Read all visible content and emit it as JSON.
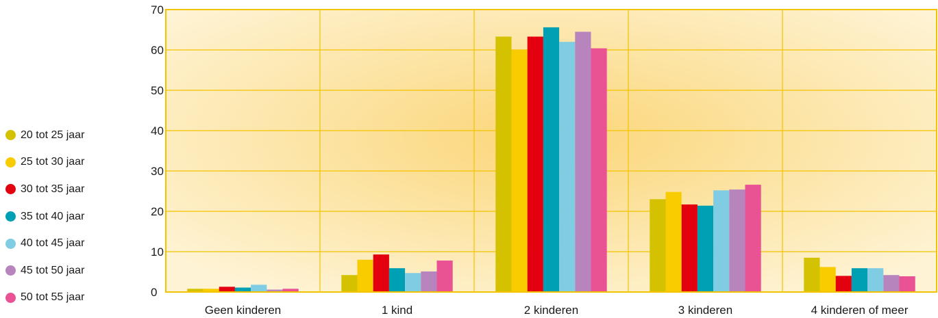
{
  "chart_data": {
    "type": "bar",
    "categories": [
      "Geen kinderen",
      "1 kind",
      "2 kinderen",
      "3 kinderen",
      "4 kinderen of meer"
    ],
    "series": [
      {
        "name": "20 tot 25 jaar",
        "color": "#d4c200",
        "values": [
          0.8,
          4.2,
          63.3,
          23.0,
          8.5
        ]
      },
      {
        "name": "25 tot 30 jaar",
        "color": "#f9cc00",
        "values": [
          0.8,
          8.0,
          60.0,
          24.8,
          6.2
        ]
      },
      {
        "name": "30 tot 35 jaar",
        "color": "#e3000f",
        "values": [
          1.3,
          9.3,
          63.3,
          21.7,
          4.0
        ]
      },
      {
        "name": "35 tot 40 jaar",
        "color": "#00a0b4",
        "values": [
          1.1,
          5.9,
          65.6,
          21.4,
          5.9
        ]
      },
      {
        "name": "40 tot 45 jaar",
        "color": "#7fcce3",
        "values": [
          1.8,
          4.7,
          62.0,
          25.2,
          5.9
        ]
      },
      {
        "name": "45 tot 50 jaar",
        "color": "#b784be",
        "values": [
          0.6,
          5.1,
          64.5,
          25.4,
          4.2
        ]
      },
      {
        "name": "50 tot 55 jaar",
        "color": "#e95394",
        "values": [
          0.8,
          7.8,
          60.4,
          26.6,
          3.9
        ]
      }
    ],
    "ylim": [
      0,
      70
    ],
    "yticks": [
      0,
      10,
      20,
      30,
      40,
      50,
      60,
      70
    ],
    "grid": true,
    "legend_position": "left",
    "title": "",
    "xlabel": "",
    "ylabel": ""
  }
}
